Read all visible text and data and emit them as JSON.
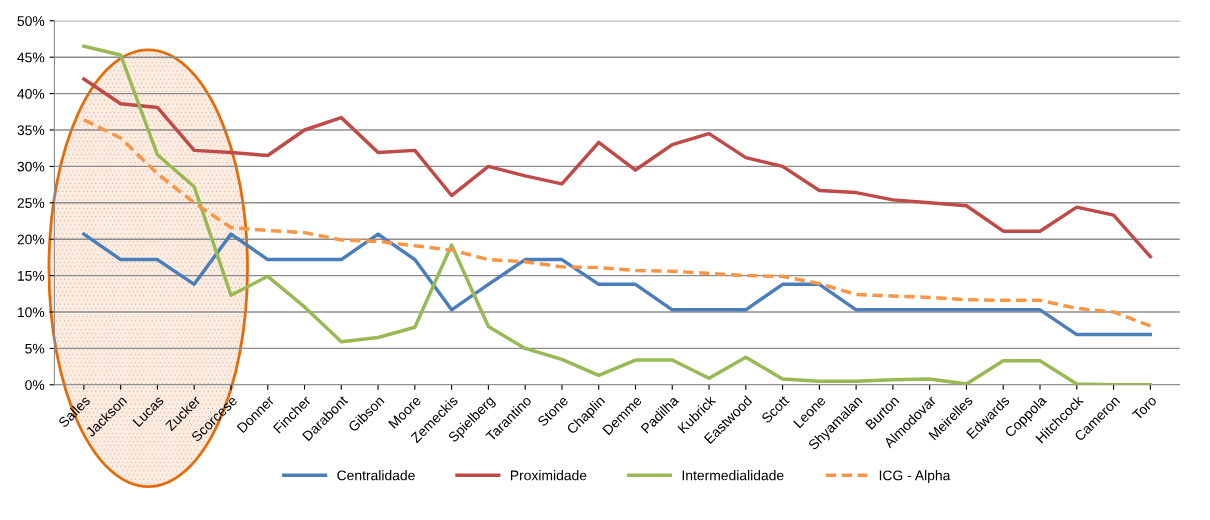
{
  "chart_data": {
    "type": "line",
    "categories": [
      "Salles",
      "Jackson",
      "Lucas",
      "Zucker",
      "Scorcese",
      "Donner",
      "Fincher",
      "Darabont",
      "Gibson",
      "Moore",
      "Zemeckis",
      "Spielberg",
      "Tarantino",
      "Stone",
      "Chaplin",
      "Demme",
      "Padilha",
      "Kubrick",
      "Eastwood",
      "Scott",
      "Leone",
      "Shyamalan",
      "Burton",
      "Almodovar",
      "Meirelles",
      "Edwards",
      "Coppola",
      "Hitchcock",
      "Cameron",
      "Toro"
    ],
    "series": [
      {
        "name": "Centralidade",
        "color": "#4a7ebb",
        "line_style": "solid",
        "values": [
          20.7,
          17.2,
          17.2,
          13.8,
          20.7,
          17.2,
          17.2,
          17.2,
          20.7,
          17.2,
          10.3,
          13.8,
          17.2,
          17.2,
          13.8,
          13.8,
          10.3,
          10.3,
          10.3,
          13.8,
          13.8,
          10.3,
          10.3,
          10.3,
          10.3,
          10.3,
          10.3,
          6.9,
          6.9,
          6.9
        ]
      },
      {
        "name": "Proximidade",
        "color": "#be4b48",
        "line_style": "solid",
        "values": [
          42,
          38.6,
          38.1,
          32.2,
          31.9,
          31.5,
          35,
          36.7,
          31.9,
          32.2,
          26,
          30,
          28.7,
          27.6,
          33.3,
          29.5,
          33,
          34.5,
          31.2,
          30,
          26.7,
          26.4,
          25.4,
          25,
          24.6,
          21.1,
          21.1,
          24.4,
          23.3,
          17.6
        ]
      },
      {
        "name": "Intermedialidade",
        "color": "#98b954",
        "line_style": "solid",
        "values": [
          46.5,
          45.3,
          31.6,
          27.2,
          12.3,
          14.9,
          10.7,
          5.9,
          6.5,
          7.9,
          19.2,
          8,
          5,
          3.5,
          1.3,
          3.4,
          3.4,
          0.9,
          3.8,
          0.8,
          0.5,
          0.5,
          0.7,
          0.8,
          0.1,
          3.3,
          3.3,
          0.1,
          0,
          0
        ]
      },
      {
        "name": "ICG - Alpha",
        "color": "#f79646",
        "line_style": "dashed",
        "values": [
          36.4,
          33.9,
          29,
          25,
          21.6,
          21.2,
          20.9,
          19.9,
          19.7,
          19.1,
          18.5,
          17.2,
          16.9,
          16.2,
          16.1,
          15.7,
          15.6,
          15.3,
          15.0,
          14.9,
          13.9,
          12.4,
          12.2,
          12.0,
          11.7,
          11.6,
          11.6,
          10.5,
          10.0,
          8.1
        ]
      }
    ],
    "ylim": [
      0,
      50
    ],
    "yticks": [
      {
        "value": 0,
        "label": "0%"
      },
      {
        "value": 5,
        "label": "5%"
      },
      {
        "value": 10,
        "label": "10%"
      },
      {
        "value": 15,
        "label": "15%"
      },
      {
        "value": 20,
        "label": "20%"
      },
      {
        "value": 25,
        "label": "25%"
      },
      {
        "value": 30,
        "label": "30%"
      },
      {
        "value": 35,
        "label": "35%"
      },
      {
        "value": 40,
        "label": "40%"
      },
      {
        "value": 45,
        "label": "45%"
      },
      {
        "value": 50,
        "label": "50%"
      }
    ],
    "grid": "y",
    "legend": "bottom",
    "marker": "none"
  }
}
